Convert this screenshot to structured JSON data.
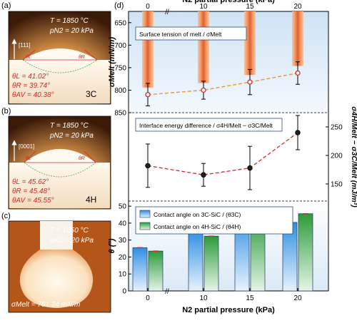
{
  "panels": {
    "a": {
      "letter": "(a)",
      "temp": "T = 1850 °C",
      "pressure": "pN2 = 20 kPa",
      "axis": "[111]",
      "angle_l_label": "θL",
      "angle_r_label": "θR",
      "angles": [
        "θL = 41.02°",
        "θR = 39.74°",
        "θAV = 40.38°"
      ],
      "tag": "3C"
    },
    "b": {
      "letter": "(b)",
      "temp": "T = 1850 °C",
      "pressure": "pN2 = 20 kPa",
      "axis": "[0001]",
      "angle_l_label": "θL",
      "angle_r_label": "θR",
      "angles": [
        "θL = 45.62°",
        "θR = 45.48°",
        "θAV = 45.55°"
      ],
      "tag": "4H"
    },
    "c": {
      "letter": "(c)",
      "temp": "T = 1850 °C",
      "pressure": "pN2 = 20 kPa",
      "sigma": "σMelt = 761.24 mN/m"
    },
    "d": {
      "letter": "(d)"
    }
  },
  "colors": {
    "orange": "#f29a38",
    "red": "#d42a2a",
    "blue": "#2f8fe3",
    "green": "#2d9a3b",
    "panel_top_bg": "#dcebf8"
  },
  "chart_data": [
    {
      "type": "line",
      "title": "Surface tension of melt / σMelt",
      "ylabel": "σMelt (mN/m)",
      "x": [
        0,
        10,
        15,
        20
      ],
      "categories": [
        "0",
        "10",
        "15",
        "20"
      ],
      "top_xlabel": "N2 partial pressure (kPa)",
      "yticks": [
        650,
        700,
        750,
        800,
        850
      ],
      "ylim": [
        850,
        625
      ],
      "series": [
        {
          "values": [
            810,
            800,
            782,
            762
          ],
          "errors": [
            25,
            20,
            28,
            25
          ]
        }
      ]
    },
    {
      "type": "line",
      "title": "Interface energy difference / σ4H/Melt − σ3C/Melt",
      "ylabel": "σ4H/Melt − σ3C/Melt (mJ/m²)",
      "x": [
        0,
        10,
        15,
        20
      ],
      "yticks": [
        150,
        200,
        250
      ],
      "ylim": [
        120,
        275
      ],
      "series": [
        {
          "values": [
            182,
            166,
            178,
            240
          ],
          "errors": [
            38,
            20,
            38,
            30
          ]
        }
      ]
    },
    {
      "type": "bar",
      "ylabel": "θ (°)",
      "xlabel": "N2 partial pressure (kPa)",
      "categories": [
        "0",
        "10",
        "15",
        "20"
      ],
      "yticks": [
        0,
        10,
        20,
        30,
        40,
        50
      ],
      "ylim": [
        0,
        53
      ],
      "series": [
        {
          "name": "Contact angle on 3C-SiC / (θ3C)",
          "values": [
            25.5,
            35.5,
            45,
            40.4
          ]
        },
        {
          "name": "Contact angle on 4H-SiC / (θ4H)",
          "values": [
            23.5,
            32.3,
            43.5,
            45.55
          ]
        }
      ]
    }
  ]
}
